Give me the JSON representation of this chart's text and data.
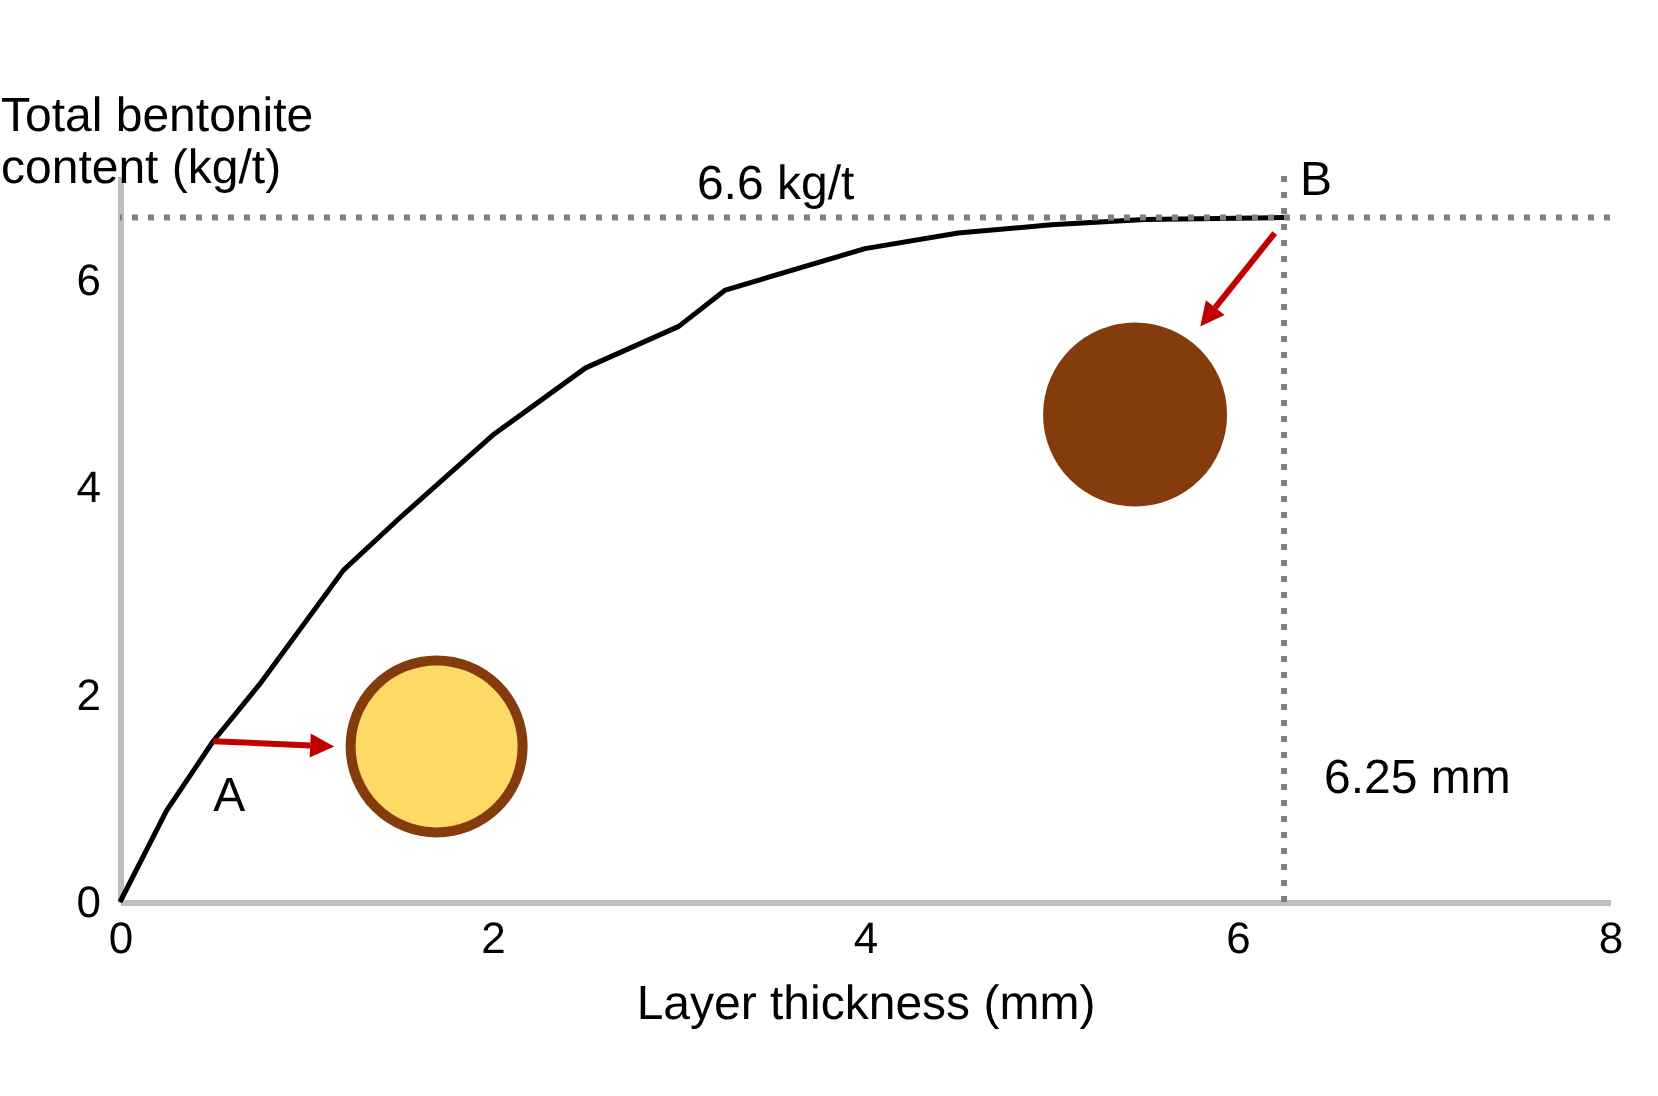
{
  "chart_data": {
    "type": "line",
    "xlabel": "Layer thickness (mm)",
    "ylabel": "Total bentonite content (kg/t)",
    "x": [
      0,
      0.25,
      0.5,
      0.75,
      1.2,
      1.5,
      2,
      2.5,
      3,
      3.25,
      4,
      4.5,
      5,
      5.5,
      6.25
    ],
    "series": [
      {
        "color": "#000000",
        "values": [
          0,
          0.88,
          1.55,
          2.1,
          3.2,
          3.7,
          4.5,
          5.15,
          5.55,
          5.9,
          6.3,
          6.45,
          6.53,
          6.58,
          6.6
        ]
      }
    ],
    "xlim": [
      0,
      8
    ],
    "xticks": [
      0,
      2,
      4,
      6,
      8
    ],
    "ylim": [
      0,
      7
    ],
    "yticks": [
      0,
      2,
      4,
      6
    ],
    "grid": false,
    "marker": "none",
    "line_style": "solid",
    "ref_lines": [
      {
        "axis": "y",
        "value": 6.6,
        "label": "6.6 kg/t",
        "color": "#808080",
        "line_style": "dotted"
      },
      {
        "axis": "x",
        "value": 6.25,
        "label": "6.25 mm",
        "color": "#808080",
        "line_style": "dotted"
      }
    ],
    "annotations": [
      {
        "text": "A",
        "x": 0.5,
        "y": 1.55
      },
      {
        "text": "B",
        "x": 6.25,
        "y": 6.6
      }
    ]
  }
}
